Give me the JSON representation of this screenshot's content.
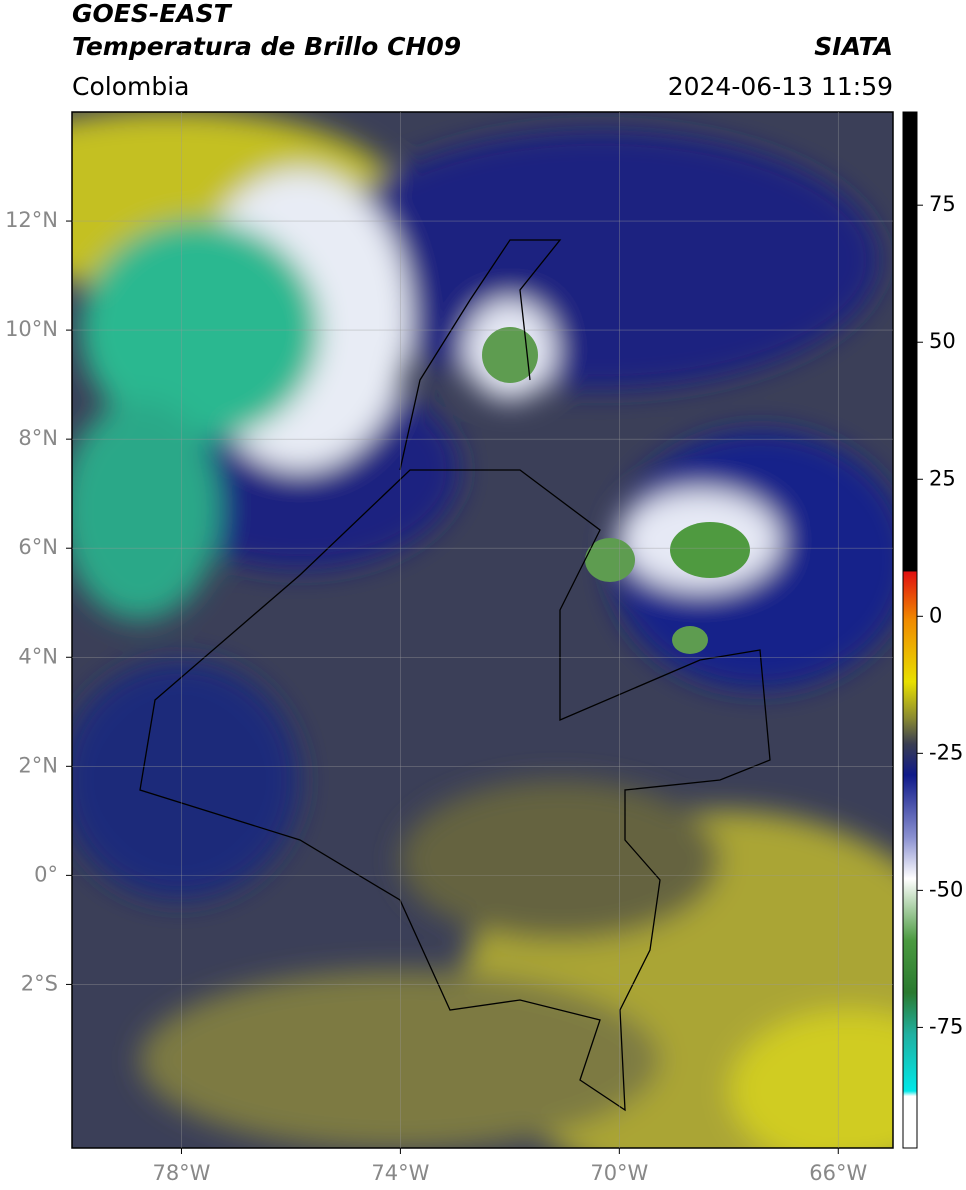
{
  "header": {
    "title": "GOES-EAST",
    "subtitle": "Temperatura de Brillo CH09",
    "source": "SIATA",
    "region": "Colombia",
    "datetime": "2024-06-13 11:59"
  },
  "map": {
    "lon_range": [
      -80,
      -65
    ],
    "lat_range": [
      -5,
      14
    ],
    "lon_ticks": [
      {
        "value": -78,
        "label": "78°W"
      },
      {
        "value": -74,
        "label": "74°W"
      },
      {
        "value": -70,
        "label": "70°W"
      },
      {
        "value": -66,
        "label": "66°W"
      }
    ],
    "lat_ticks": [
      {
        "value": 12,
        "label": "12°N"
      },
      {
        "value": 10,
        "label": "10°N"
      },
      {
        "value": 8,
        "label": "8°N"
      },
      {
        "value": 6,
        "label": "6°N"
      },
      {
        "value": 4,
        "label": "4°N"
      },
      {
        "value": 2,
        "label": "2°N"
      },
      {
        "value": 0,
        "label": "0°"
      },
      {
        "value": -2,
        "label": "2°S"
      }
    ]
  },
  "colorbar": {
    "range": [
      -97,
      92
    ],
    "ticks": [
      75,
      50,
      25,
      0,
      -25,
      -50,
      -75
    ]
  }
}
